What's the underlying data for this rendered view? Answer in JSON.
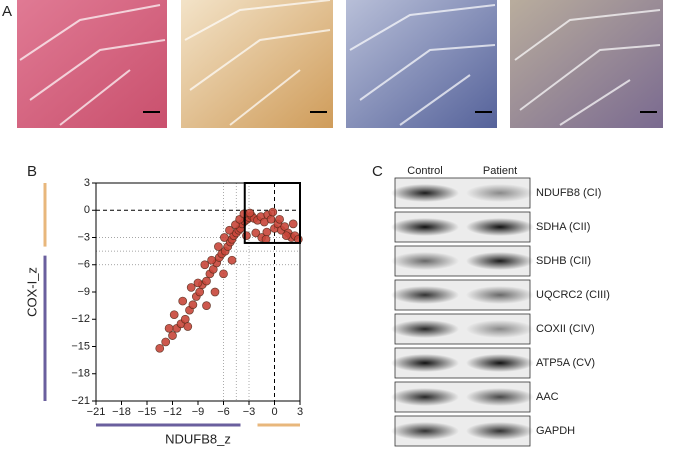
{
  "panel_labels": [
    "A",
    "B",
    "C"
  ],
  "chart_data": {
    "type": "scatter",
    "x_label": "NDUFB8_z",
    "y_label": "COX-I_z",
    "xlim": [
      -21,
      3
    ],
    "ylim": [
      -21,
      3
    ],
    "xticks": [
      {
        "value": -21,
        "label": "−21"
      },
      {
        "value": -18,
        "label": "−18"
      },
      {
        "value": -15,
        "label": "−15"
      },
      {
        "value": -12,
        "label": "−12"
      },
      {
        "value": -9,
        "label": "−9"
      },
      {
        "value": -6,
        "label": "−6"
      },
      {
        "value": -3,
        "label": "−3"
      },
      0,
      3
    ],
    "yticks": [
      {
        "value": -21,
        "label": "−21"
      },
      {
        "value": -18,
        "label": "−18"
      },
      {
        "value": -15,
        "label": "−15"
      },
      {
        "value": -12,
        "label": "−12"
      },
      {
        "value": -9,
        "label": "−9"
      },
      {
        "value": -6,
        "label": "−6"
      },
      {
        "value": -3,
        "label": "−3"
      },
      0,
      3
    ],
    "dashed_lines": [
      0
    ],
    "dotted_lines": [
      -3,
      -4.5,
      -6
    ],
    "box": {
      "x": [
        -3.5,
        3
      ],
      "y": [
        -3.6,
        3
      ]
    },
    "x_bands": [
      {
        "from": -21,
        "to": -4,
        "color": "#6a5f9e"
      },
      {
        "from": -2,
        "to": 3,
        "color": "#e8b77c"
      }
    ],
    "y_bands": [
      {
        "from": 3,
        "to": -4,
        "color": "#e8b77c"
      },
      {
        "from": -5,
        "to": -21,
        "color": "#6a5f9e"
      }
    ],
    "series": [
      {
        "color": "#c8463a",
        "x": [
          -13.5,
          -12.8,
          -12,
          -11.5,
          -11,
          -10.5,
          -10,
          -9.6,
          -9.2,
          -8.8,
          -8.5,
          -8,
          -7.6,
          -7.2,
          -6.8,
          -6.5,
          -6.2,
          -5.8,
          -5.5,
          -5.2,
          -5,
          -4.8,
          -4.5,
          -4.2,
          -4,
          -3.8,
          -3.5,
          -3.2,
          -3,
          -2.7,
          -2.4,
          -2,
          -1.6,
          -1.2,
          -0.8,
          -0.4,
          0,
          0.4,
          0.8,
          1.2,
          1.6,
          2,
          2.4,
          2.8,
          -11.8,
          -10.8,
          -9.8,
          -9,
          -8.2,
          -7.4,
          -6.6,
          -5.9,
          -5.3,
          -4.6,
          -4.1,
          -3.6,
          -2.9,
          -2.2,
          -1.5,
          -0.9,
          -0.2,
          0.6,
          1.4,
          2.2,
          -7,
          -6,
          -5,
          -8,
          -3.3,
          -1,
          -12.4,
          -10.2
        ],
        "values": [
          -15.2,
          -14.5,
          -13.8,
          -13,
          -12.5,
          -12,
          -11,
          -10.4,
          -9.5,
          -9,
          -8.2,
          -7.8,
          -7,
          -6.5,
          -5.8,
          -5.2,
          -4.8,
          -4.5,
          -4,
          -3.5,
          -3.2,
          -2.8,
          -2.5,
          -2.2,
          -2,
          -1.5,
          -1.2,
          -1,
          -0.8,
          -0.6,
          -0.9,
          -1.1,
          -0.7,
          -1.3,
          -0.5,
          -1,
          -2,
          -1.5,
          -2.2,
          -1.8,
          -2.5,
          -3,
          -2.8,
          -3.2,
          -11.5,
          -10,
          -8.5,
          -8,
          -6,
          -5.5,
          -4,
          -3,
          -2.2,
          -1.6,
          -1,
          -0.4,
          -0.3,
          -2.5,
          -3,
          -2.4,
          -0.2,
          -1,
          -2.8,
          -1.5,
          -9,
          -7,
          -5.5,
          -10.5,
          -2.8,
          -3.2,
          -13,
          -12.8
        ]
      }
    ]
  },
  "blot": {
    "columns": [
      "Control",
      "Patient"
    ],
    "rows": [
      "NDUFB8 (CI)",
      "SDHA (CII)",
      "SDHB (CII)",
      "UQCRC2 (CIII)",
      "COXII (CIV)",
      "ATP5A (CV)",
      "AAC",
      "GAPDH"
    ]
  }
}
